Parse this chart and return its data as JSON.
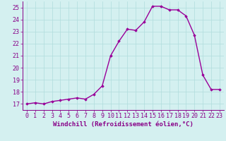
{
  "x": [
    0,
    1,
    2,
    3,
    4,
    5,
    6,
    7,
    8,
    9,
    10,
    11,
    12,
    13,
    14,
    15,
    16,
    17,
    18,
    19,
    20,
    21,
    22,
    23
  ],
  "y": [
    17.0,
    17.1,
    17.0,
    17.2,
    17.3,
    17.4,
    17.5,
    17.4,
    17.8,
    18.5,
    21.0,
    22.2,
    23.2,
    23.1,
    23.8,
    25.1,
    25.1,
    24.8,
    24.8,
    24.3,
    22.7,
    19.4,
    18.2,
    18.2
  ],
  "line_color": "#990099",
  "marker": "D",
  "markersize": 1.8,
  "linewidth": 1.0,
  "xlabel": "Windchill (Refroidissement éolien,°C)",
  "xlim": [
    -0.5,
    23.5
  ],
  "ylim": [
    16.5,
    25.5
  ],
  "yticks": [
    17,
    18,
    19,
    20,
    21,
    22,
    23,
    24,
    25
  ],
  "xticks": [
    0,
    1,
    2,
    3,
    4,
    5,
    6,
    7,
    8,
    9,
    10,
    11,
    12,
    13,
    14,
    15,
    16,
    17,
    18,
    19,
    20,
    21,
    22,
    23
  ],
  "bg_color": "#d4f0f0",
  "grid_color": "#b0dcdc",
  "tick_label_color": "#880088",
  "xlabel_color": "#880088",
  "xlabel_fontsize": 6.5,
  "tick_fontsize": 6.0
}
